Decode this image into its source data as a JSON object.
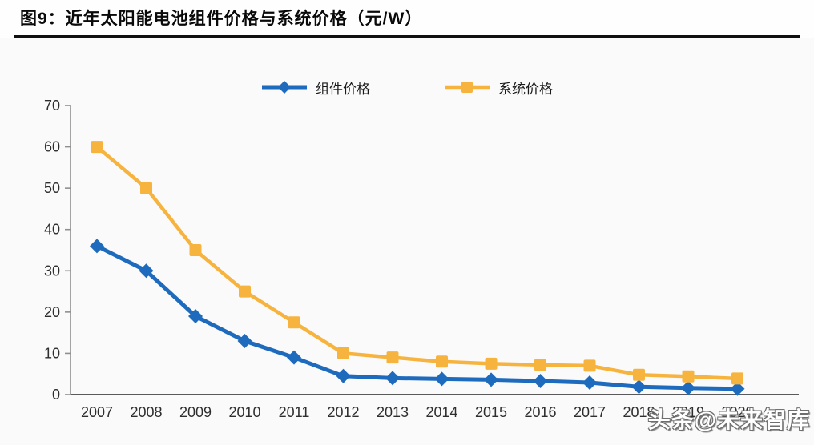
{
  "header": {
    "title": "图9：近年太阳能电池组件价格与系统价格（元/W）"
  },
  "watermark": {
    "text": "头条@未来智库"
  },
  "colors": {
    "module_blue": "#1E6BBE",
    "system_yellow": "#F6B43F",
    "y_axis": "#8f8f8f",
    "x_axis": "#5a5a5a",
    "tick_label": "#2e2e2e"
  },
  "chart_data": {
    "type": "line",
    "title": "近年太阳能电池组件价格与系统价格（元/W）",
    "categories": [
      "2007",
      "2008",
      "2009",
      "2010",
      "2011",
      "2012",
      "2013",
      "2014",
      "2015",
      "2016",
      "2017",
      "2018",
      "2019",
      "2020"
    ],
    "series": [
      {
        "name": "组件价格",
        "marker": "diamond",
        "color": "#1E6BBE",
        "values": [
          36,
          30,
          19,
          13,
          9,
          4.5,
          4,
          3.8,
          3.6,
          3.3,
          2.9,
          1.9,
          1.6,
          1.4
        ]
      },
      {
        "name": "系统价格",
        "marker": "square",
        "color": "#F6B43F",
        "values": [
          60,
          50,
          35,
          25,
          17.5,
          10,
          9,
          8,
          7.5,
          7.2,
          7,
          4.8,
          4.4,
          3.9
        ]
      }
    ],
    "xlabel": "",
    "ylabel": "",
    "ylim": [
      0,
      70
    ],
    "yticks": [
      0,
      10,
      20,
      30,
      40,
      50,
      60,
      70
    ],
    "legend_position": "top",
    "grid": false
  }
}
